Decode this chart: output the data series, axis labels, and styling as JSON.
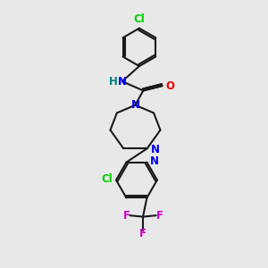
{
  "background_color": "#e8e8e8",
  "bond_color": "#1a1a1a",
  "atom_colors": {
    "N": "#0000ee",
    "O": "#ee0000",
    "Cl": "#00cc00",
    "F": "#cc00cc",
    "H": "#008080"
  },
  "figsize": [
    3.0,
    3.0
  ],
  "dpi": 100
}
